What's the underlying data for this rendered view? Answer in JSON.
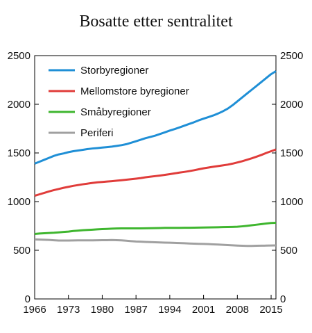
{
  "chart_data": {
    "type": "line",
    "title": "Bosatte etter sentralitet",
    "xlabel": "",
    "ylabel": "",
    "xlim": [
      1966,
      2016
    ],
    "ylim": [
      0,
      2500
    ],
    "x_ticks": [
      1966,
      1973,
      1980,
      1987,
      1994,
      2001,
      2008,
      2015
    ],
    "y_ticks": [
      0,
      500,
      1000,
      1500,
      2000,
      2500
    ],
    "legend_position": "top-left",
    "grid": false,
    "x": [
      1966,
      1967,
      1968,
      1969,
      1970,
      1971,
      1972,
      1973,
      1974,
      1975,
      1976,
      1977,
      1978,
      1979,
      1980,
      1981,
      1982,
      1983,
      1984,
      1985,
      1986,
      1987,
      1988,
      1989,
      1990,
      1991,
      1992,
      1993,
      1994,
      1995,
      1996,
      1997,
      1998,
      1999,
      2000,
      2001,
      2002,
      2003,
      2004,
      2005,
      2006,
      2007,
      2008,
      2009,
      2010,
      2011,
      2012,
      2013,
      2014,
      2015,
      2016
    ],
    "series": [
      {
        "name": "Storbyregioner",
        "color": "#1f8fd6",
        "values": [
          1390,
          1410,
          1430,
          1450,
          1470,
          1485,
          1495,
          1508,
          1518,
          1525,
          1532,
          1540,
          1546,
          1550,
          1555,
          1560,
          1565,
          1572,
          1580,
          1590,
          1605,
          1620,
          1636,
          1652,
          1665,
          1678,
          1695,
          1712,
          1730,
          1745,
          1762,
          1780,
          1798,
          1815,
          1835,
          1852,
          1868,
          1885,
          1905,
          1928,
          1955,
          1990,
          2030,
          2070,
          2110,
          2150,
          2190,
          2230,
          2270,
          2310,
          2340
        ]
      },
      {
        "name": "Mellomstore byregioner",
        "color": "#e03c3a",
        "values": [
          1060,
          1075,
          1090,
          1105,
          1118,
          1130,
          1142,
          1152,
          1162,
          1170,
          1178,
          1185,
          1192,
          1198,
          1202,
          1206,
          1210,
          1215,
          1220,
          1225,
          1230,
          1236,
          1242,
          1250,
          1256,
          1262,
          1268,
          1275,
          1282,
          1290,
          1298,
          1305,
          1313,
          1322,
          1332,
          1342,
          1350,
          1358,
          1365,
          1372,
          1380,
          1390,
          1402,
          1415,
          1430,
          1445,
          1462,
          1480,
          1500,
          1518,
          1535
        ]
      },
      {
        "name": "Småbyregioner",
        "color": "#3fb62f",
        "values": [
          668,
          672,
          675,
          678,
          680,
          684,
          688,
          692,
          698,
          702,
          706,
          709,
          712,
          715,
          718,
          720,
          722,
          724,
          725,
          725,
          725,
          725,
          725,
          726,
          727,
          728,
          729,
          730,
          730,
          730,
          730,
          731,
          731,
          732,
          733,
          734,
          735,
          736,
          737,
          738,
          739,
          740,
          742,
          746,
          751,
          757,
          763,
          769,
          775,
          780,
          782
        ]
      },
      {
        "name": "Periferi",
        "color": "#a0a0a0",
        "values": [
          612,
          610,
          608,
          606,
          603,
          600,
          600,
          600,
          601,
          602,
          602,
          602,
          602,
          603,
          604,
          604,
          605,
          604,
          602,
          598,
          594,
          590,
          588,
          586,
          584,
          582,
          580,
          579,
          578,
          576,
          574,
          572,
          570,
          568,
          566,
          565,
          563,
          561,
          559,
          556,
          554,
          551,
          548,
          546,
          545,
          545,
          546,
          547,
          548,
          549,
          550
        ]
      }
    ]
  }
}
